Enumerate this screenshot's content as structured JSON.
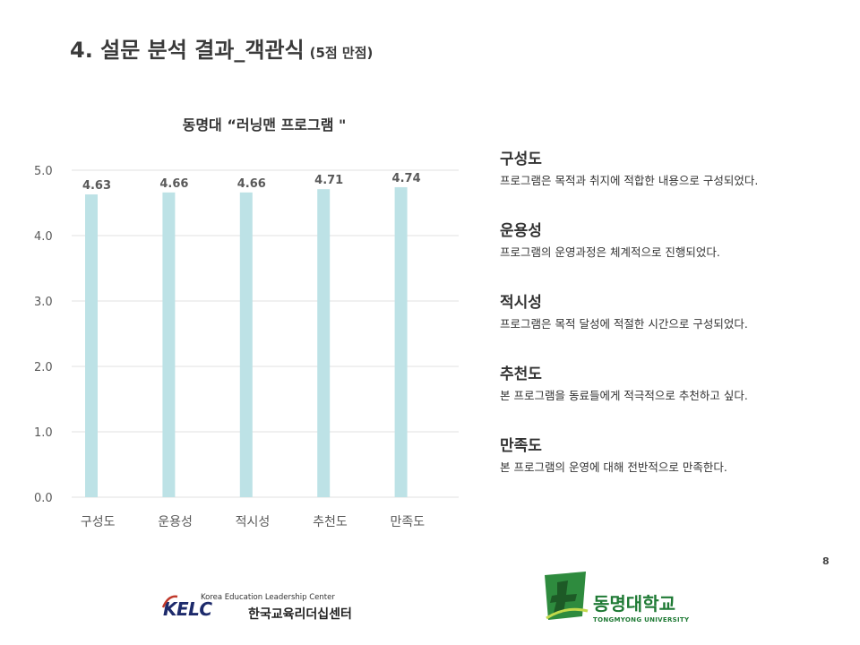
{
  "slide": {
    "title": "4. 설문 분석 결과_객관식",
    "title_sub": "(5점 만점)",
    "page_number": "8"
  },
  "chart_data": {
    "type": "bar",
    "title": "동명대 “러닝맨 프로그램 \"",
    "categories": [
      "구성도",
      "운용성",
      "적시성",
      "추천도",
      "만족도"
    ],
    "values": [
      4.63,
      4.66,
      4.66,
      4.71,
      4.74
    ],
    "data_labels": [
      "4.63",
      "4.66",
      "4.66",
      "4.71",
      "4.74"
    ],
    "y_ticks": [
      "0.0",
      "1.0",
      "2.0",
      "3.0",
      "4.0",
      "5.0"
    ],
    "ylim": [
      0,
      5
    ],
    "grid": true,
    "legend": "none",
    "bar_color": "#bde2e6",
    "gridline_color": "#e2e2e2",
    "label_color": "#595959"
  },
  "criteria": [
    {
      "name": "구성도",
      "desc": "프로그램은 목적과 취지에 적합한 내용으로 구성되었다."
    },
    {
      "name": "운용성",
      "desc": "프로그램의 운영과정은 체계적으로 진행되었다."
    },
    {
      "name": "적시성",
      "desc": "프로그램은 목적 달성에 적절한 시간으로 구성되었다."
    },
    {
      "name": "추천도",
      "desc": "본 프로그램을 동료들에게 적극적으로 추천하고 싶다."
    },
    {
      "name": "만족도",
      "desc": "본 프로그램의 운영에 대해 전반적으로 만족한다."
    }
  ],
  "logos": {
    "kelc_en": "Korea Education Leadership Center",
    "kelc_mark": "KELC",
    "kelc_ko": "한국교육리더십센터",
    "tmu_ko": "동명대학교",
    "tmu_en": "TONGMYONG UNIVERSITY",
    "tmu_color": "#1f7a35",
    "kelc_color": "#1d2a6b"
  }
}
